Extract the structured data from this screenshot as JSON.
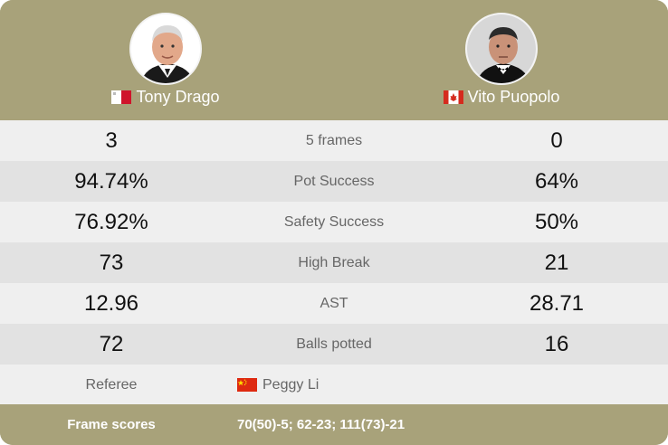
{
  "players": {
    "left": {
      "name": "Tony Drago",
      "country_flag": "malta-flag-icon"
    },
    "right": {
      "name": "Vito Puopolo",
      "country_flag": "canada-flag-icon"
    }
  },
  "stats": [
    {
      "label": "5 frames",
      "left": "3",
      "right": "0"
    },
    {
      "label": "Pot Success",
      "left": "94.74%",
      "right": "64%"
    },
    {
      "label": "Safety Success",
      "left": "76.92%",
      "right": "50%"
    },
    {
      "label": "High Break",
      "left": "73",
      "right": "21"
    },
    {
      "label": "AST",
      "left": "12.96",
      "right": "28.71"
    },
    {
      "label": "Balls potted",
      "left": "72",
      "right": "16"
    }
  ],
  "referee": {
    "label": "Referee",
    "name": "Peggy Li",
    "country_flag": "china-flag-icon"
  },
  "frame_scores": {
    "label": "Frame scores",
    "value": "70(50)-5; 62-23; 111(73)-21"
  },
  "colors": {
    "header_bg": "#a8a27a",
    "row_light": "#efefef",
    "row_dark": "#e2e2e2"
  }
}
